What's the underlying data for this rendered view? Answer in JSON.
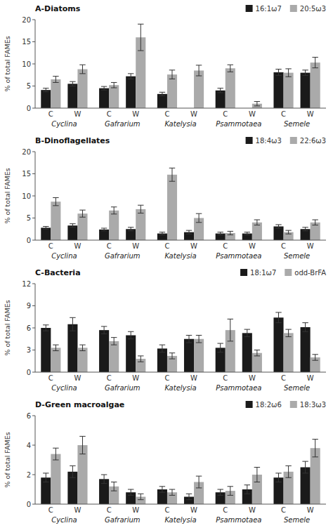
{
  "chart_data": [
    {
      "type": "bar",
      "title": "A-Diatoms",
      "ylabel": "% of total FAMEs",
      "categories": [
        "C",
        "W",
        "C",
        "W",
        "C",
        "W",
        "C",
        "W",
        "C",
        "W"
      ],
      "annotations": [
        "Cyclina",
        "Gafrarium",
        "Katelysia",
        "Psammotaea",
        "Semele"
      ],
      "series": [
        {
          "name": "16:1ω7",
          "color": "#1a1a1a",
          "values": [
            4.1,
            5.5,
            4.5,
            7.2,
            3.2,
            null,
            4.0,
            null,
            8.1,
            8.0
          ],
          "errors": [
            0.4,
            0.5,
            0.4,
            0.6,
            0.4,
            null,
            0.5,
            null,
            0.7,
            0.6
          ]
        },
        {
          "name": "20:5ω3",
          "color": "#aaaaaa",
          "values": [
            6.5,
            8.8,
            5.2,
            16.0,
            7.6,
            8.5,
            9.0,
            1.0,
            8.0,
            10.3
          ],
          "errors": [
            0.7,
            1.0,
            0.6,
            3.0,
            1.0,
            1.2,
            0.8,
            0.5,
            0.9,
            1.2
          ]
        }
      ],
      "ylim": [
        0,
        20
      ],
      "yticks": [
        0,
        5,
        10,
        15,
        20
      ],
      "grid": false,
      "legend": "upper right"
    },
    {
      "type": "bar",
      "title": "B-Dinoflagellates",
      "ylabel": "% of total FAMEs",
      "categories": [
        "C",
        "W",
        "C",
        "W",
        "C",
        "W",
        "C",
        "W",
        "C",
        "W"
      ],
      "annotations": [
        "Cyclina",
        "Gafrarium",
        "Katelysia",
        "Psammotaea",
        "Semele"
      ],
      "series": [
        {
          "name": "18:4ω3",
          "color": "#1a1a1a",
          "values": [
            2.8,
            3.3,
            2.4,
            2.5,
            1.5,
            1.8,
            1.5,
            1.5,
            3.1,
            2.5
          ],
          "errors": [
            0.3,
            0.4,
            0.3,
            0.4,
            0.3,
            0.4,
            0.3,
            0.3,
            0.4,
            0.4
          ]
        },
        {
          "name": "22:6ω3",
          "color": "#aaaaaa",
          "values": [
            8.7,
            6.0,
            6.7,
            7.0,
            14.8,
            5.0,
            1.6,
            4.0,
            1.8,
            4.0
          ],
          "errors": [
            0.9,
            0.8,
            0.8,
            0.9,
            1.5,
            1.0,
            0.4,
            0.6,
            0.4,
            0.6
          ]
        }
      ],
      "ylim": [
        0,
        20
      ],
      "yticks": [
        0,
        5,
        10,
        15,
        20
      ],
      "grid": false,
      "legend": "upper right"
    },
    {
      "type": "bar",
      "title": "C-Bacteria",
      "ylabel": "% of total FAMEs",
      "categories": [
        "C",
        "W",
        "C",
        "W",
        "C",
        "W",
        "C",
        "W",
        "C",
        "W"
      ],
      "annotations": [
        "Cyclina",
        "Gafrarium",
        "Katelysia",
        "Psammotaea",
        "Semele"
      ],
      "series": [
        {
          "name": "18:1ω7",
          "color": "#1a1a1a",
          "values": [
            6.0,
            6.5,
            5.7,
            5.0,
            3.2,
            4.5,
            3.3,
            5.3,
            7.4,
            6.1
          ],
          "errors": [
            0.4,
            0.9,
            0.5,
            0.5,
            0.5,
            0.5,
            0.6,
            0.5,
            0.7,
            0.6
          ]
        },
        {
          "name": "odd-BrFA",
          "color": "#aaaaaa",
          "values": [
            3.3,
            3.3,
            4.2,
            1.8,
            2.2,
            4.5,
            5.7,
            2.6,
            5.3,
            2.0
          ],
          "errors": [
            0.4,
            0.4,
            0.5,
            0.4,
            0.4,
            0.5,
            1.5,
            0.4,
            0.5,
            0.4
          ]
        }
      ],
      "ylim": [
        0,
        12
      ],
      "yticks": [
        0,
        3,
        6,
        9,
        12
      ],
      "grid": false,
      "legend": "upper right"
    },
    {
      "type": "bar",
      "title": "D-Green macroalgae",
      "ylabel": "% of total FAMEs",
      "categories": [
        "C",
        "W",
        "C",
        "W",
        "C",
        "W",
        "C",
        "W",
        "C",
        "W"
      ],
      "annotations": [
        "Cyclina",
        "Gafrarium",
        "Katelysia",
        "Psammotaea",
        "Semele"
      ],
      "series": [
        {
          "name": "18:2ω6",
          "color": "#1a1a1a",
          "values": [
            1.8,
            2.2,
            1.7,
            0.8,
            1.0,
            0.5,
            0.8,
            1.0,
            1.8,
            2.5
          ],
          "errors": [
            0.3,
            0.4,
            0.3,
            0.2,
            0.2,
            0.2,
            0.2,
            0.3,
            0.3,
            0.4
          ]
        },
        {
          "name": "18:3ω3",
          "color": "#aaaaaa",
          "values": [
            3.4,
            4.0,
            1.2,
            0.5,
            0.8,
            1.5,
            0.9,
            2.0,
            2.2,
            3.8
          ],
          "errors": [
            0.4,
            0.6,
            0.3,
            0.2,
            0.2,
            0.4,
            0.3,
            0.5,
            0.4,
            0.6
          ]
        }
      ],
      "ylim": [
        0,
        6
      ],
      "yticks": [
        0,
        2,
        4,
        6
      ],
      "grid": false,
      "legend": "upper right"
    }
  ]
}
